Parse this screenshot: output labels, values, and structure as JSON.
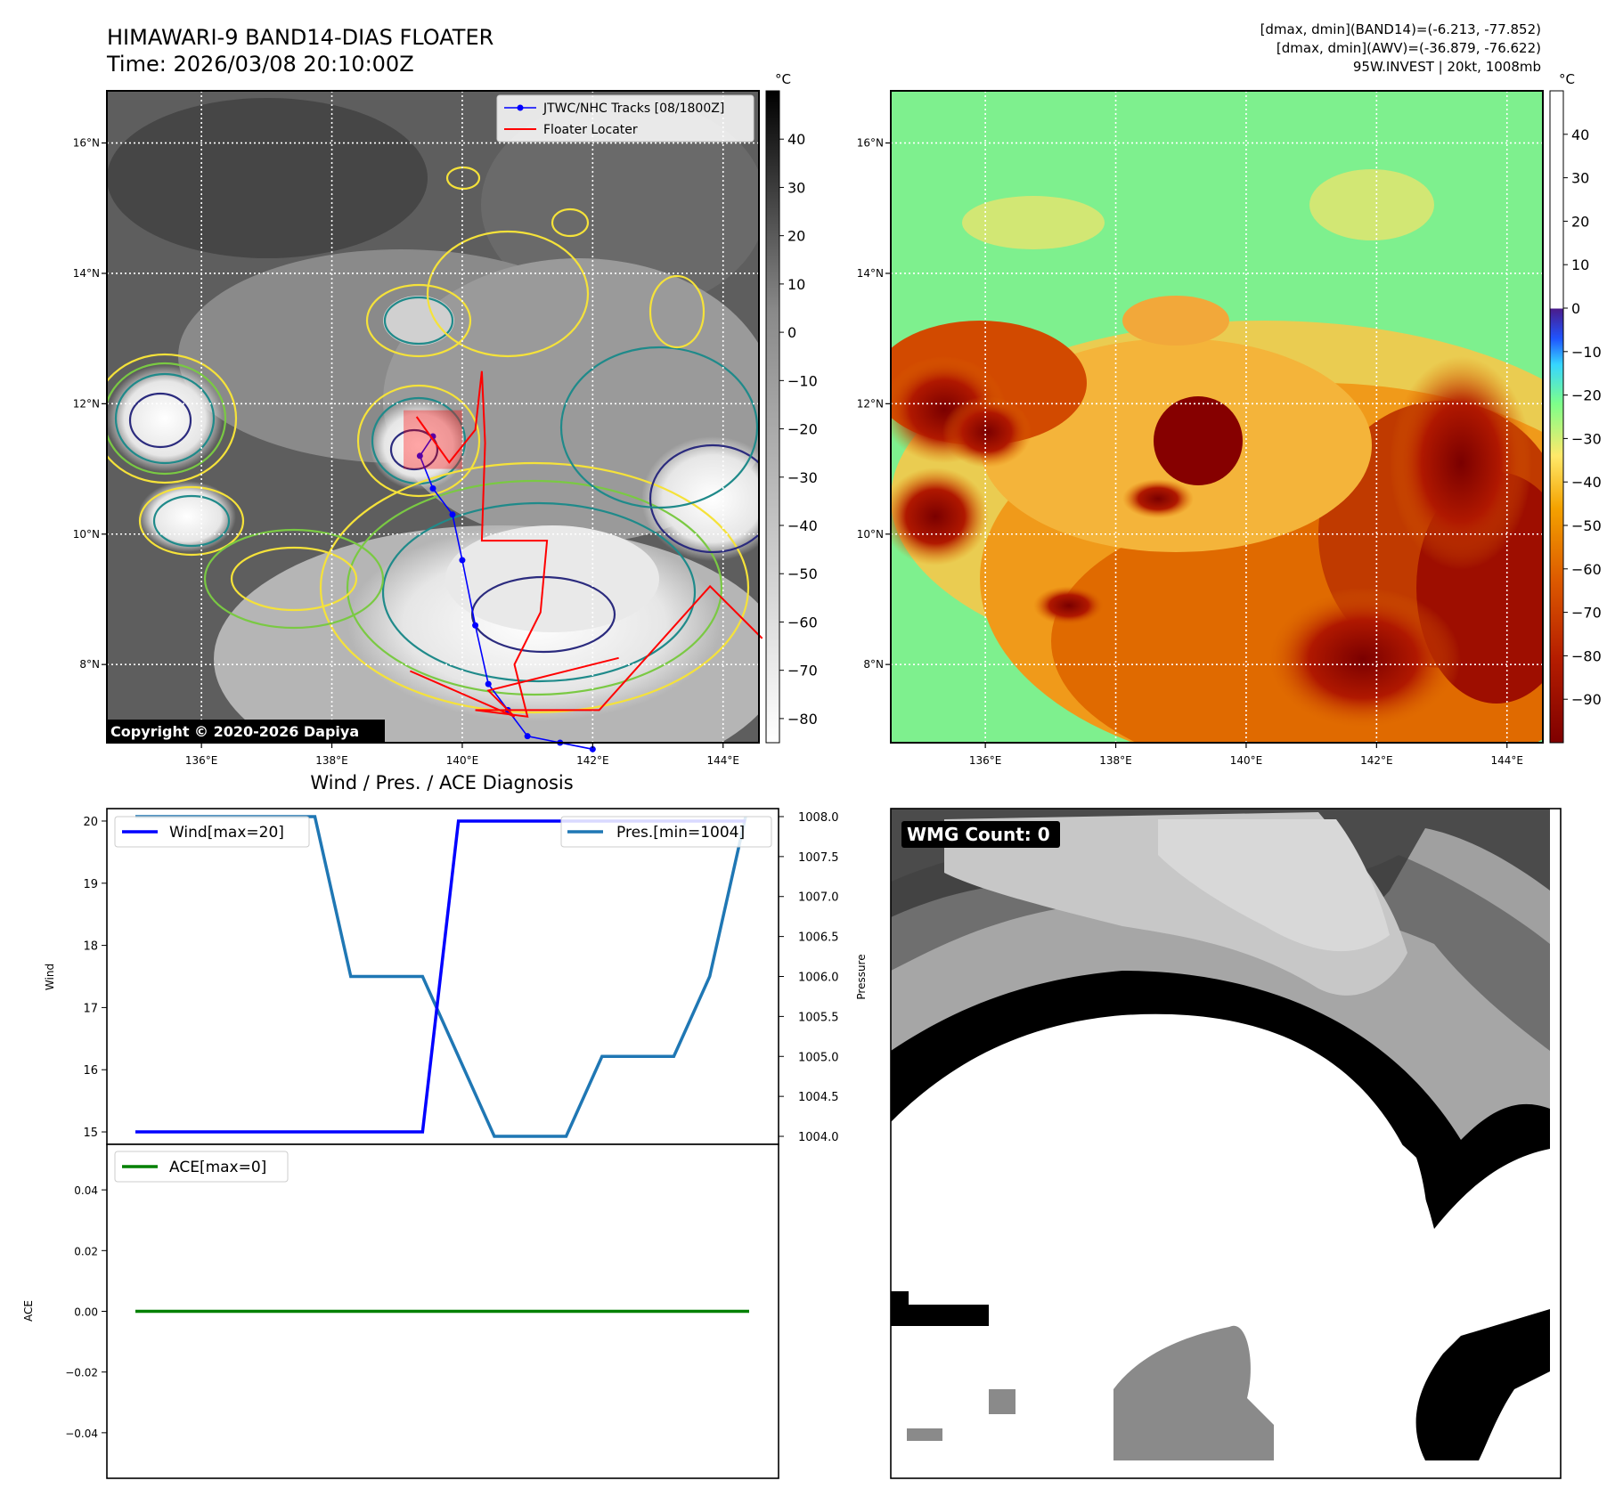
{
  "header": {
    "title": "HIMAWARI-9 BAND14-DIAS FLOATER",
    "time": "Time: 2026/03/08 20:10:00Z",
    "stats": [
      "[dmax, dmin](BAND14)=(-6.213, -77.852)",
      "[dmax, dmin](AWV)=(-36.879, -76.622)",
      "95W.INVEST | 20kt, 1008mb"
    ]
  },
  "maps": {
    "lon_ticks": [
      "136°E",
      "138°E",
      "140°E",
      "142°E",
      "144°E"
    ],
    "lat_ticks": [
      "16°N",
      "14°N",
      "12°N",
      "10°N",
      "8°N"
    ],
    "lon_values": [
      136,
      138,
      140,
      142,
      144
    ],
    "lat_values": [
      16,
      14,
      12,
      10,
      8
    ],
    "extent": {
      "lon": [
        134.55,
        144.55
      ],
      "lat": [
        6.8,
        16.8
      ]
    },
    "unit": "°C",
    "copyright": "Copyright © 2020-2026 Dapiya",
    "legend": {
      "track": "JTWC/NHC Tracks [08/1800Z]",
      "locator": "Floater Locater"
    },
    "ir_colorbar_ticks": [
      "40",
      "30",
      "20",
      "10",
      "0",
      "−10",
      "−20",
      "−30",
      "−40",
      "−50",
      "−60",
      "−70",
      "−80"
    ],
    "ir_colorbar_range": [
      -85,
      50
    ],
    "awv_colorbar_ticks": [
      "40",
      "30",
      "20",
      "10",
      "0",
      "−10",
      "−20",
      "−30",
      "−40",
      "−50",
      "−60",
      "−70",
      "−80",
      "−90"
    ],
    "awv_colorbar_range": [
      -100,
      50
    ],
    "track_color": "#0000ff",
    "locator_color": "#ff0000"
  },
  "chart_data": [
    {
      "type": "line",
      "title": "Wind / Pres. / ACE Diagnosis",
      "ylabel": "Wind",
      "y2label": "Pressure",
      "x": [
        0,
        1,
        2,
        3,
        4,
        5,
        6,
        7,
        8,
        9,
        10,
        11,
        12,
        13,
        14,
        15,
        16,
        17
      ],
      "ylim": [
        14.8,
        20.2
      ],
      "y2lim": [
        1003.9,
        1008.1
      ],
      "yticks": [
        "20",
        "19",
        "18",
        "17",
        "16",
        "15"
      ],
      "y2ticks": [
        "1008.0",
        "1007.5",
        "1007.0",
        "1006.5",
        "1006.0",
        "1005.5",
        "1005.0",
        "1004.5",
        "1004.0"
      ],
      "series": [
        {
          "name": "Wind[max=20]",
          "axis": "left",
          "color": "#0000ff",
          "values": [
            15,
            15,
            15,
            15,
            15,
            15,
            15,
            15,
            15,
            20,
            20,
            20,
            20,
            20,
            20,
            20,
            20,
            20
          ]
        },
        {
          "name": "Pres.[min=1004]",
          "axis": "right",
          "color": "#1f77b4",
          "values": [
            1008,
            1008,
            1008,
            1008,
            1008,
            1008,
            1006,
            1006,
            1006,
            1005,
            1004,
            1004,
            1004,
            1005,
            1005,
            1005,
            1006,
            1008
          ]
        }
      ],
      "legend": [
        "top-left",
        "top-right"
      ]
    },
    {
      "type": "line",
      "ylabel": "ACE",
      "x": [
        0,
        1,
        2,
        3,
        4,
        5,
        6,
        7,
        8,
        9,
        10,
        11,
        12,
        13,
        14,
        15,
        16,
        17
      ],
      "ylim": [
        -0.055,
        0.055
      ],
      "yticks": [
        "0.04",
        "0.02",
        "0.00",
        "−0.02",
        "−0.04"
      ],
      "series": [
        {
          "name": "ACE[max=0]",
          "color": "#008000",
          "values": [
            0,
            0,
            0,
            0,
            0,
            0,
            0,
            0,
            0,
            0,
            0,
            0,
            0,
            0,
            0,
            0,
            0,
            0
          ]
        }
      ],
      "legend": "top-left"
    }
  ],
  "wmg": {
    "label": "WMG Count: 0"
  }
}
